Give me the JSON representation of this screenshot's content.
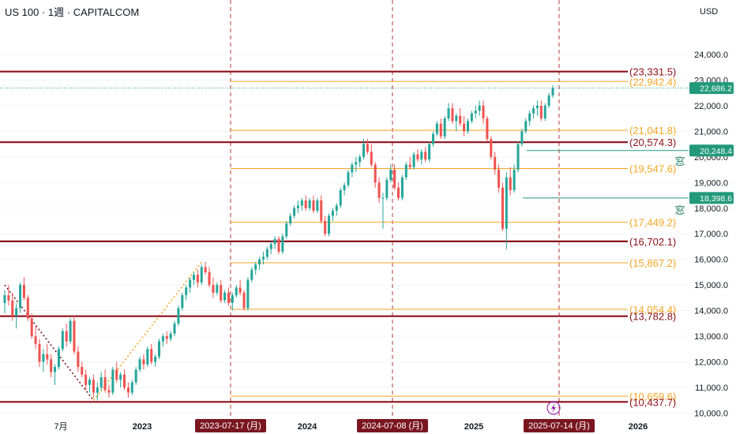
{
  "header": {
    "title": "US 100 · 1週 · CAPITALCOM",
    "currency": "USD"
  },
  "colors": {
    "up": "#26a69a",
    "down": "#ef5350",
    "support": "#8b0f1a",
    "fib": "#f5a623",
    "vline": "#b03a3a",
    "badge_green": "#22997a",
    "date_box": "#7a1620",
    "lightning": "#9c27b0"
  },
  "chart_data": {
    "type": "candlestick",
    "title": "US 100 · 1週 · CAPITALCOM",
    "y_unit": "USD",
    "ylim": [
      9800,
      25200
    ],
    "y_ticks": [
      "24,000.0",
      "23,000.0",
      "22,000.0",
      "21,000.0",
      "20,000.0",
      "19,000.0",
      "18,000.0",
      "17,000.0",
      "16,000.0",
      "15,000.0",
      "14,000.0",
      "13,000.0",
      "12,000.0",
      "11,000.0",
      "10,000.0"
    ],
    "x_ticks": [
      {
        "label": "7月",
        "bold": false
      },
      {
        "label": "2023",
        "bold": true
      },
      {
        "label": "2024",
        "bold": true
      },
      {
        "label": "2025",
        "bold": true
      },
      {
        "label": "2026",
        "bold": true
      }
    ],
    "last_price": "22,686.2",
    "horizontal_levels": [
      {
        "label": "(23,331.5)",
        "value": 23331.5,
        "kind": "support"
      },
      {
        "label": "(22,942.4)",
        "value": 22942.4,
        "kind": "fib"
      },
      {
        "label": "(21,041.8)",
        "value": 21041.8,
        "kind": "fib"
      },
      {
        "label": "(20,574.3)",
        "value": 20574.3,
        "kind": "support"
      },
      {
        "label": "(19,547.6)",
        "value": 19547.6,
        "kind": "fib"
      },
      {
        "label": "(17,449.2)",
        "value": 17449.2,
        "kind": "fib"
      },
      {
        "label": "(16,702.1)",
        "value": 16702.1,
        "kind": "support"
      },
      {
        "label": "(15,867.2)",
        "value": 15867.2,
        "kind": "fib"
      },
      {
        "label": "(14,054.4)",
        "value": 14054.4,
        "kind": "fib"
      },
      {
        "label": "(13,782.8)",
        "value": 13782.8,
        "kind": "support"
      },
      {
        "label": "(10,659.6)",
        "value": 10659.6,
        "kind": "fib"
      },
      {
        "label": "(10,437.7)",
        "value": 10437.7,
        "kind": "support"
      }
    ],
    "gap_levels": [
      {
        "label": "20,248.4",
        "value": 20248.4,
        "note": "窓"
      },
      {
        "label": "18,398.6",
        "value": 18398.6,
        "note": "窓"
      }
    ],
    "vertical_dates": [
      "2023-07-17 (月)",
      "2024-07-08 (月)",
      "2025-07-14 (月)"
    ],
    "candles": [
      [
        14300,
        14800,
        13900,
        14600
      ],
      [
        14600,
        15000,
        14200,
        14400
      ],
      [
        14400,
        14700,
        13600,
        13800
      ],
      [
        13800,
        14300,
        13300,
        14100
      ],
      [
        14100,
        15100,
        13900,
        15000
      ],
      [
        15000,
        15300,
        14400,
        14500
      ],
      [
        14500,
        14600,
        13600,
        13700
      ],
      [
        13700,
        13900,
        12900,
        13000
      ],
      [
        13000,
        13400,
        12500,
        12700
      ],
      [
        12700,
        12900,
        11800,
        12000
      ],
      [
        12000,
        12500,
        11600,
        12300
      ],
      [
        12300,
        12700,
        11900,
        12100
      ],
      [
        12100,
        12300,
        11400,
        11600
      ],
      [
        11600,
        11900,
        11100,
        11800
      ],
      [
        11800,
        12600,
        11700,
        12500
      ],
      [
        12500,
        13300,
        12400,
        13200
      ],
      [
        13200,
        13500,
        12600,
        12800
      ],
      [
        12800,
        13700,
        12700,
        13600
      ],
      [
        13600,
        13800,
        12300,
        12400
      ],
      [
        12400,
        12600,
        11600,
        11800
      ],
      [
        11800,
        12000,
        11400,
        11500
      ],
      [
        11500,
        11700,
        10900,
        11100
      ],
      [
        11100,
        11400,
        10800,
        11300
      ],
      [
        11300,
        11500,
        10600,
        10800
      ],
      [
        10800,
        11200,
        10500,
        11000
      ],
      [
        11000,
        11600,
        10900,
        11400
      ],
      [
        11400,
        11700,
        10800,
        10900
      ],
      [
        10900,
        11100,
        10600,
        10800
      ],
      [
        10800,
        11800,
        10700,
        11700
      ],
      [
        11700,
        12000,
        11200,
        11300
      ],
      [
        11300,
        11600,
        11000,
        11500
      ],
      [
        11500,
        11700,
        10900,
        11000
      ],
      [
        11000,
        11200,
        10600,
        10800
      ],
      [
        10800,
        11300,
        10700,
        11200
      ],
      [
        11200,
        11800,
        11100,
        11700
      ],
      [
        11700,
        12200,
        11600,
        12100
      ],
      [
        12100,
        12300,
        11700,
        11900
      ],
      [
        11900,
        12600,
        11800,
        12500
      ],
      [
        12500,
        12700,
        11900,
        12000
      ],
      [
        12000,
        12300,
        11800,
        12200
      ],
      [
        12200,
        12900,
        12100,
        12800
      ],
      [
        12800,
        13100,
        12600,
        13000
      ],
      [
        13000,
        13200,
        12700,
        12900
      ],
      [
        12900,
        13200,
        12800,
        13100
      ],
      [
        13100,
        13600,
        13000,
        13500
      ],
      [
        13500,
        14200,
        13400,
        14100
      ],
      [
        14100,
        14700,
        14000,
        14600
      ],
      [
        14600,
        15000,
        14400,
        14900
      ],
      [
        14900,
        15300,
        14700,
        15200
      ],
      [
        15200,
        15500,
        15000,
        15400
      ],
      [
        15400,
        15600,
        14900,
        15100
      ],
      [
        15100,
        15800,
        15000,
        15700
      ],
      [
        15700,
        15900,
        15400,
        15500
      ],
      [
        15500,
        15700,
        14900,
        15000
      ],
      [
        15000,
        15300,
        14500,
        14700
      ],
      [
        14700,
        15100,
        14600,
        15000
      ],
      [
        15000,
        15200,
        14300,
        14400
      ],
      [
        14400,
        14800,
        14300,
        14700
      ],
      [
        14700,
        14900,
        14200,
        14300
      ],
      [
        14300,
        14700,
        14000,
        14600
      ],
      [
        14600,
        15000,
        14500,
        14900
      ],
      [
        14900,
        15200,
        14600,
        14700
      ],
      [
        14700,
        14800,
        14000,
        14100
      ],
      [
        14100,
        15300,
        14000,
        15200
      ],
      [
        15200,
        15700,
        15100,
        15600
      ],
      [
        15600,
        15900,
        15400,
        15800
      ],
      [
        15800,
        16100,
        15600,
        16000
      ],
      [
        16000,
        16300,
        15800,
        16100
      ],
      [
        16100,
        16500,
        16000,
        16400
      ],
      [
        16400,
        16700,
        16200,
        16600
      ],
      [
        16600,
        16900,
        16400,
        16800
      ],
      [
        16800,
        16900,
        16200,
        16300
      ],
      [
        16300,
        17000,
        16200,
        16900
      ],
      [
        16900,
        17500,
        16800,
        17400
      ],
      [
        17400,
        17800,
        17300,
        17700
      ],
      [
        17700,
        18100,
        17600,
        18000
      ],
      [
        18000,
        18300,
        17800,
        18100
      ],
      [
        18100,
        18400,
        17900,
        18300
      ],
      [
        18300,
        18500,
        17900,
        18000
      ],
      [
        18000,
        18400,
        17900,
        18300
      ],
      [
        18300,
        18500,
        17800,
        17900
      ],
      [
        17900,
        18400,
        17800,
        18300
      ],
      [
        18300,
        18500,
        17400,
        17500
      ],
      [
        17500,
        17700,
        16900,
        17000
      ],
      [
        17000,
        17800,
        16900,
        17700
      ],
      [
        17700,
        18000,
        17500,
        17900
      ],
      [
        17900,
        18200,
        17700,
        18100
      ],
      [
        18100,
        18800,
        18000,
        18700
      ],
      [
        18700,
        19000,
        18500,
        18900
      ],
      [
        18900,
        19500,
        18800,
        19400
      ],
      [
        19400,
        19800,
        19200,
        19700
      ],
      [
        19700,
        20000,
        19400,
        19800
      ],
      [
        19800,
        20100,
        19600,
        20000
      ],
      [
        20000,
        20700,
        19900,
        20500
      ],
      [
        20500,
        20700,
        20100,
        20200
      ],
      [
        20200,
        20500,
        19600,
        19700
      ],
      [
        19700,
        19800,
        18800,
        19000
      ],
      [
        19000,
        19200,
        18200,
        18400
      ],
      [
        18400,
        18600,
        17200,
        18400
      ],
      [
        18400,
        19200,
        18300,
        19100
      ],
      [
        19100,
        19700,
        19000,
        19500
      ],
      [
        19500,
        19700,
        18700,
        18800
      ],
      [
        18800,
        19000,
        18300,
        18400
      ],
      [
        18400,
        19300,
        18300,
        19200
      ],
      [
        19200,
        19800,
        19100,
        19700
      ],
      [
        19700,
        20000,
        19500,
        19600
      ],
      [
        19600,
        20200,
        19500,
        20100
      ],
      [
        20100,
        20300,
        19800,
        19900
      ],
      [
        19900,
        20300,
        19700,
        20200
      ],
      [
        20200,
        20400,
        19800,
        19900
      ],
      [
        19900,
        20600,
        19800,
        20500
      ],
      [
        20500,
        21000,
        20400,
        20900
      ],
      [
        20900,
        21400,
        20800,
        21300
      ],
      [
        21300,
        21500,
        20700,
        20800
      ],
      [
        20800,
        21600,
        20700,
        21500
      ],
      [
        21500,
        22100,
        21400,
        21900
      ],
      [
        21900,
        22100,
        21300,
        21400
      ],
      [
        21400,
        21700,
        21000,
        21600
      ],
      [
        21600,
        21900,
        21200,
        21300
      ],
      [
        21300,
        21600,
        20800,
        21000
      ],
      [
        21000,
        21500,
        20900,
        21400
      ],
      [
        21400,
        21800,
        21300,
        21700
      ],
      [
        21700,
        22000,
        21500,
        21800
      ],
      [
        21800,
        22200,
        21600,
        22000
      ],
      [
        22000,
        22200,
        21300,
        21500
      ],
      [
        21500,
        21600,
        20600,
        20700
      ],
      [
        20700,
        20800,
        19900,
        20000
      ],
      [
        20000,
        20200,
        19300,
        19500
      ],
      [
        19500,
        19700,
        18600,
        18800
      ],
      [
        18800,
        19000,
        17100,
        17200
      ],
      [
        17200,
        19400,
        16400,
        19200
      ],
      [
        19200,
        19600,
        18500,
        18700
      ],
      [
        18700,
        19700,
        18600,
        19500
      ],
      [
        19500,
        20600,
        19400,
        20500
      ],
      [
        20500,
        21100,
        20400,
        21000
      ],
      [
        21000,
        21500,
        20900,
        21400
      ],
      [
        21400,
        21800,
        21200,
        21700
      ],
      [
        21700,
        22000,
        21500,
        21900
      ],
      [
        21900,
        22200,
        21600,
        22000
      ],
      [
        22000,
        22200,
        21400,
        21500
      ],
      [
        21500,
        22100,
        21400,
        22000
      ],
      [
        22000,
        22500,
        21900,
        22400
      ],
      [
        22400,
        22800,
        22300,
        22686.2
      ]
    ],
    "annotations": [
      {
        "type": "line",
        "style": "dotted",
        "from": [
          0,
          15000
        ],
        "to": [
          23,
          10500
        ]
      },
      {
        "type": "line",
        "style": "dotted",
        "from": [
          23,
          10500
        ],
        "to": [
          51,
          15900
        ]
      }
    ]
  }
}
